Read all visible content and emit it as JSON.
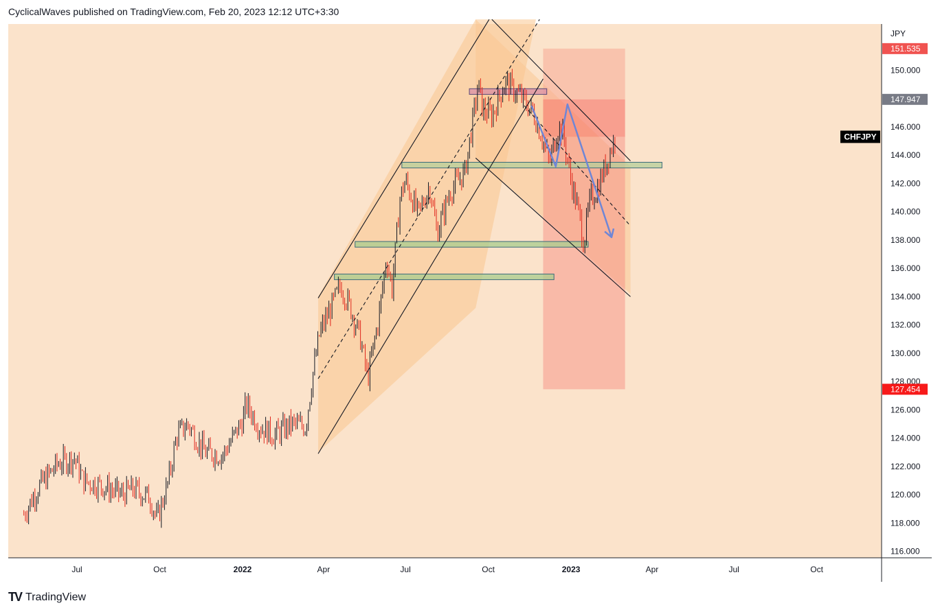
{
  "header": {
    "text": "CyclicalWaves published on TradingView.com, Feb 20, 2023 12:12 UTC+3:30"
  },
  "footer": {
    "logo": "TV",
    "brand": "TradingView"
  },
  "colors": {
    "background": "#fbe3cb",
    "candle_up": "#131722",
    "candle_down": "#e0261c",
    "arrow": "#6f86d6"
  },
  "chart_data": {
    "type": "candlestick",
    "symbol": "CHFJPY",
    "currency": "JPY",
    "y_ticks": [
      "116.000",
      "118.000",
      "120.000",
      "122.000",
      "124.000",
      "126.000",
      "128.000",
      "130.000",
      "132.000",
      "134.000",
      "136.000",
      "138.000",
      "140.000",
      "142.000",
      "144.000",
      "146.000",
      "148.000",
      "150.000"
    ],
    "ylim": [
      115.2,
      153.6
    ],
    "x_ticks": [
      {
        "label": "Jul",
        "date": "2021-07-01"
      },
      {
        "label": "Oct",
        "date": "2021-10-01"
      },
      {
        "label": "2022",
        "date": "2022-01-01",
        "bold": true
      },
      {
        "label": "Apr",
        "date": "2022-04-01"
      },
      {
        "label": "Jul",
        "date": "2022-07-01"
      },
      {
        "label": "Oct",
        "date": "2022-10-01"
      },
      {
        "label": "2023",
        "date": "2023-01-01",
        "bold": true
      },
      {
        "label": "Apr",
        "date": "2023-04-01"
      },
      {
        "label": "Jul",
        "date": "2023-07-01"
      },
      {
        "label": "Oct",
        "date": "2023-10-01"
      }
    ],
    "price_labels": [
      {
        "text": "151.535",
        "value": 151.535,
        "color": "#f05350"
      },
      {
        "text": "147.947",
        "value": 147.947,
        "color": "#787b86"
      },
      {
        "text": "127.454",
        "value": 127.454,
        "color": "#f71a1a"
      }
    ],
    "last_label": {
      "text": "CHFJPY",
      "value": 145.3,
      "color": "#000000"
    },
    "price_path": [
      [
        "2021-05-03",
        118.6
      ],
      [
        "2021-05-20",
        120.6
      ],
      [
        "2021-06-10",
        122.2
      ],
      [
        "2021-06-28",
        122.6
      ],
      [
        "2021-07-08",
        121.0
      ],
      [
        "2021-07-30",
        120.6
      ],
      [
        "2021-08-20",
        120.0
      ],
      [
        "2021-09-01",
        120.4
      ],
      [
        "2021-09-20",
        119.8
      ],
      [
        "2021-09-28",
        118.2
      ],
      [
        "2021-10-10",
        120.8
      ],
      [
        "2021-10-20",
        124.2
      ],
      [
        "2021-11-01",
        125.0
      ],
      [
        "2021-11-20",
        123.0
      ],
      [
        "2021-12-10",
        122.8
      ],
      [
        "2022-01-01",
        125.2
      ],
      [
        "2022-01-05",
        126.4
      ],
      [
        "2022-01-20",
        124.8
      ],
      [
        "2022-02-05",
        124.2
      ],
      [
        "2022-02-25",
        125.0
      ],
      [
        "2022-03-12",
        124.8
      ],
      [
        "2022-03-20",
        128.5
      ],
      [
        "2022-03-28",
        131.5
      ],
      [
        "2022-04-08",
        133.0
      ],
      [
        "2022-04-20",
        134.8
      ],
      [
        "2022-05-01",
        133.2
      ],
      [
        "2022-05-12",
        131.0
      ],
      [
        "2022-05-20",
        128.2
      ],
      [
        "2022-06-01",
        132.4
      ],
      [
        "2022-06-10",
        136.8
      ],
      [
        "2022-06-16",
        134.5
      ],
      [
        "2022-06-25",
        141.0
      ],
      [
        "2022-07-01",
        142.2
      ],
      [
        "2022-07-15",
        139.8
      ],
      [
        "2022-07-28",
        141.8
      ],
      [
        "2022-08-05",
        138.5
      ],
      [
        "2022-08-20",
        141.5
      ],
      [
        "2022-09-05",
        142.8
      ],
      [
        "2022-09-20",
        149.0
      ],
      [
        "2022-09-25",
        147.2
      ],
      [
        "2022-10-05",
        146.8
      ],
      [
        "2022-10-20",
        149.2
      ],
      [
        "2022-11-05",
        148.2
      ],
      [
        "2022-11-20",
        147.0
      ],
      [
        "2022-12-01",
        145.0
      ],
      [
        "2022-12-08",
        143.5
      ],
      [
        "2022-12-18",
        146.0
      ],
      [
        "2022-12-23",
        145.5
      ],
      [
        "2023-01-01",
        142.2
      ],
      [
        "2023-01-10",
        139.8
      ],
      [
        "2023-01-15",
        137.8
      ],
      [
        "2023-01-22",
        140.8
      ],
      [
        "2023-01-30",
        141.6
      ],
      [
        "2023-02-08",
        143.2
      ],
      [
        "2023-02-15",
        144.6
      ],
      [
        "2023-02-20",
        145.3
      ]
    ],
    "annotations": {
      "target_box": {
        "from": "2022-12-01",
        "to": "2023-03-02",
        "top": 151.535,
        "bottom": 127.454,
        "mid": 147.947,
        "entry": 145.3
      },
      "ascending_channel": {
        "fill_poly": [
          [
            "2022-03-26",
            134.0
          ],
          [
            "2022-03-26",
            123.0
          ],
          [
            "2022-09-17",
            133.2
          ],
          [
            "2022-11-23",
            153.6
          ],
          [
            "2022-09-17",
            153.6
          ]
        ],
        "upper": [
          [
            "2022-03-26",
            133.9
          ],
          [
            "2022-10-02",
            153.6
          ]
        ],
        "lower": [
          [
            "2022-03-26",
            122.9
          ],
          [
            "2022-12-01",
            149.4
          ]
        ],
        "mid": [
          [
            "2022-03-26",
            128.2
          ],
          [
            "2022-11-27",
            153.6
          ]
        ]
      },
      "descending_channel": {
        "fill_poly": [
          [
            "2022-09-17",
            153.6
          ],
          [
            "2022-09-17",
            143.8
          ],
          [
            "2023-03-08",
            134.2
          ],
          [
            "2023-03-08",
            143.2
          ]
        ],
        "upper": [
          [
            "2022-10-05",
            153.6
          ],
          [
            "2023-03-08",
            143.6
          ]
        ],
        "lower": [
          [
            "2022-09-17",
            143.8
          ],
          [
            "2023-03-08",
            134.0
          ]
        ],
        "mid": [
          [
            "2022-11-10",
            147.5
          ],
          [
            "2023-03-08",
            139.0
          ]
        ]
      },
      "zones": [
        {
          "from": "2022-09-10",
          "to": "2022-12-05",
          "top": 148.7,
          "bottom": 148.3,
          "fill": "#d88fa6",
          "stroke": "#5a4a7a"
        },
        {
          "from": "2022-06-27",
          "to": "2023-04-12",
          "top": 143.5,
          "bottom": 143.1,
          "fill": "#b6cf9a",
          "stroke": "#3a6a7a"
        },
        {
          "from": "2022-05-06",
          "to": "2023-01-20",
          "top": 137.9,
          "bottom": 137.5,
          "fill": "#a8cc8e",
          "stroke": "#3a6a7a"
        },
        {
          "from": "2022-04-13",
          "to": "2022-12-13",
          "top": 135.6,
          "bottom": 135.2,
          "fill": "#a8cc8e",
          "stroke": "#3a6a7a"
        }
      ],
      "projection_arrow": [
        [
          "2022-11-18",
          147.5
        ],
        [
          "2022-12-15",
          143.2
        ],
        [
          "2022-12-28",
          147.6
        ],
        [
          "2023-02-15",
          138.2
        ]
      ]
    }
  }
}
